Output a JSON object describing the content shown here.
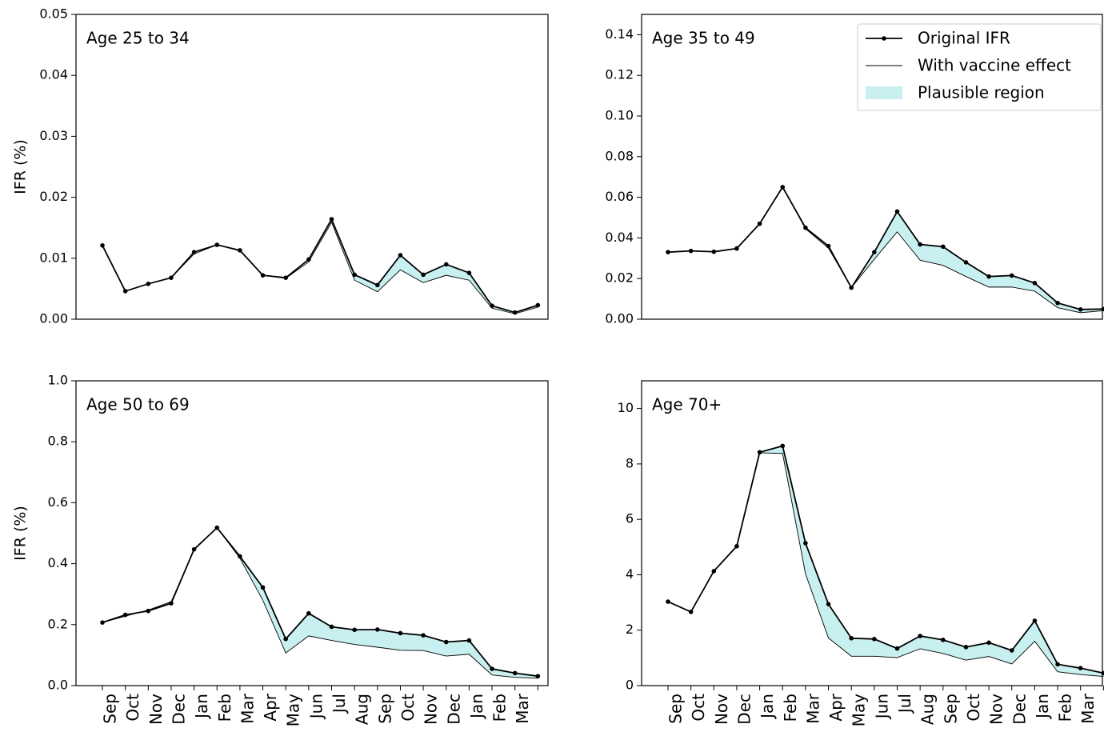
{
  "chart_data": [
    {
      "type": "line",
      "title": "Age 25 to 34",
      "ylabel": "IFR (%)",
      "ylim": [
        0,
        0.05
      ],
      "yticks": [
        {
          "value": 0,
          "label": "0.00"
        },
        0.01,
        0.02,
        0.03,
        0.04,
        0.05
      ],
      "series": [
        {
          "color": "#000000",
          "values": [
            0.0121,
            0.0046,
            0.0058,
            0.0068,
            0.011,
            0.0122,
            0.0113,
            0.0072,
            0.0068,
            0.0098,
            0.0164,
            0.0073,
            0.0056,
            0.0105,
            0.0073,
            0.009,
            0.0076,
            0.0022,
            0.0011,
            0.0023
          ]
        },
        {
          "color": "#000000",
          "values": [
            0.0121,
            0.0046,
            0.0058,
            0.0068,
            0.0107,
            0.0122,
            0.0112,
            0.0072,
            0.0067,
            0.0094,
            0.0159,
            0.0064,
            0.0045,
            0.0081,
            0.006,
            0.0072,
            0.0064,
            0.0018,
            0.0009,
            0.002
          ]
        }
      ],
      "region": {
        "color": "#c9f0f0"
      }
    },
    {
      "type": "line",
      "title": "Age 35 to 49",
      "legend": "upper right",
      "ylim": [
        0,
        0.15
      ],
      "yticks": [
        {
          "value": 0,
          "label": "0.00"
        },
        0.02,
        0.04,
        0.06,
        0.08,
        {
          "value": 0.1,
          "label": "0.10"
        },
        0.12,
        0.14
      ],
      "series": [
        {
          "name": "Original IFR",
          "color": "#000000",
          "values": [
            0.033,
            0.0336,
            0.0332,
            0.0348,
            0.047,
            0.065,
            0.045,
            0.036,
            0.0155,
            0.033,
            0.053,
            0.0368,
            0.0357,
            0.028,
            0.021,
            0.0215,
            0.0178,
            0.008,
            0.0048,
            0.005
          ]
        },
        {
          "name": "With vaccine effect",
          "color": "#000000",
          "values": [
            0.033,
            0.0336,
            0.0332,
            0.0348,
            0.047,
            0.065,
            0.0445,
            0.035,
            0.0155,
            0.0295,
            0.043,
            0.029,
            0.0265,
            0.021,
            0.0158,
            0.0158,
            0.0138,
            0.0057,
            0.0032,
            0.0042
          ]
        }
      ],
      "region": {
        "name": "Plausible region",
        "color": "#c9f0f0"
      }
    },
    {
      "type": "line",
      "title": "Age 50 to 69",
      "ylabel": "IFR (%)",
      "categories": [
        "Sep",
        "Oct",
        "Nov",
        "Dec",
        "Jan",
        "Feb",
        "Mar",
        "Apr",
        "May",
        "Jun",
        "Jul",
        "Aug",
        "Sep",
        "Oct",
        "Nov",
        "Dec",
        "Jan",
        "Feb",
        "Mar",
        null
      ],
      "ylim": [
        0,
        1.0
      ],
      "yticks": [
        {
          "value": 0,
          "label": "0.0"
        },
        0.2,
        0.4,
        0.6,
        0.8,
        {
          "value": 1,
          "label": "1.0"
        }
      ],
      "series": [
        {
          "color": "#000000",
          "values": [
            0.207,
            0.232,
            0.245,
            0.27,
            0.447,
            0.518,
            0.424,
            0.322,
            0.153,
            0.237,
            0.193,
            0.183,
            0.184,
            0.172,
            0.165,
            0.143,
            0.148,
            0.055,
            0.041,
            0.031
          ]
        },
        {
          "color": "#000000",
          "values": [
            0.207,
            0.228,
            0.248,
            0.275,
            0.445,
            0.518,
            0.418,
            0.28,
            0.107,
            0.163,
            0.148,
            0.135,
            0.126,
            0.116,
            0.115,
            0.097,
            0.103,
            0.035,
            0.027,
            0.024
          ]
        }
      ],
      "region": {
        "color": "#c9f0f0"
      }
    },
    {
      "type": "line",
      "title": "Age 70+",
      "categories": [
        "Sep",
        "Oct",
        "Nov",
        "Dec",
        "Jan",
        "Feb",
        "Mar",
        "Apr",
        "May",
        "Jun",
        "Jul",
        "Aug",
        "Sep",
        "Oct",
        "Nov",
        "Dec",
        "Jan",
        "Feb",
        "Mar",
        null
      ],
      "ylim": [
        0,
        11
      ],
      "yticks": [
        0,
        2,
        4,
        6,
        8,
        10
      ],
      "series": [
        {
          "color": "#000000",
          "values": [
            3.03,
            2.66,
            4.13,
            5.03,
            8.42,
            8.65,
            5.14,
            2.94,
            1.71,
            1.68,
            1.34,
            1.79,
            1.65,
            1.39,
            1.55,
            1.27,
            2.34,
            0.77,
            0.63,
            0.45
          ]
        },
        {
          "color": "#000000",
          "values": [
            3.03,
            2.66,
            4.13,
            5.03,
            8.4,
            8.38,
            4.03,
            1.72,
            1.06,
            1.06,
            1.01,
            1.33,
            1.16,
            0.92,
            1.05,
            0.78,
            1.6,
            0.5,
            0.4,
            0.33
          ]
        }
      ],
      "region": {
        "color": "#c9f0f0"
      }
    }
  ]
}
